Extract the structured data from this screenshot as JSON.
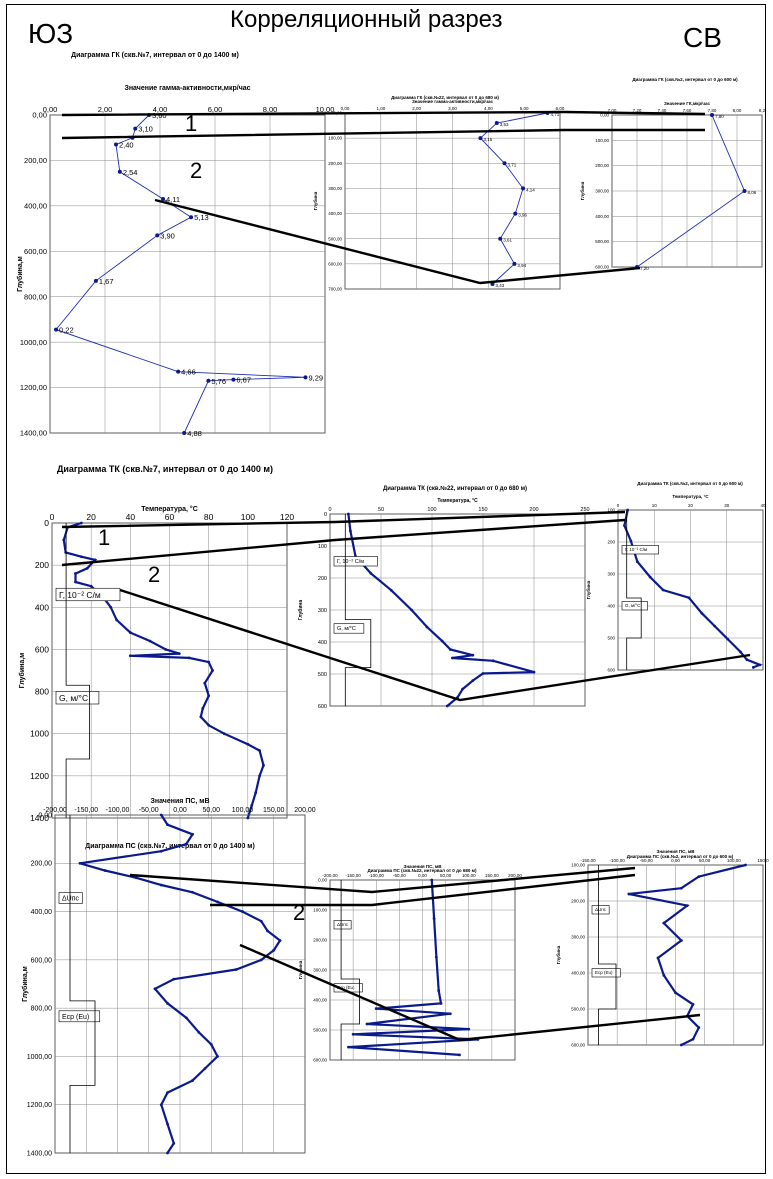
{
  "header": {
    "title": "Корреляционный разрез",
    "left_direction": "ЮЗ",
    "right_direction": "СВ"
  },
  "colors": {
    "series": "#1f2fb0",
    "series_dark": "#0a1a8c",
    "correlation": "#000000",
    "axis": "#000000"
  },
  "chart_data": [
    {
      "id": "gk7",
      "type": "line",
      "title": "Диаграмма ГК (скв.№7, интервал от 0 до 1400 м)",
      "xlabel": "Значение гамма-активности,мкр/час",
      "ylabel": "Глубина,м",
      "xlim": [
        0,
        10
      ],
      "ylim": [
        0,
        1400
      ],
      "xticks": [
        "0,00",
        "2,00",
        "4,00",
        "6,00",
        "8,00",
        "10,00"
      ],
      "yticks": [
        "0,00",
        "200,00",
        "400,00",
        "600,00",
        "800,00",
        "1000,00",
        "1200,00",
        "1400,00"
      ],
      "points": [
        {
          "x": 3.6,
          "y": 0,
          "label": "3,60"
        },
        {
          "x": 3.1,
          "y": 60,
          "label": "3,10"
        },
        {
          "x": 3.0,
          "y": 100,
          "label": ""
        },
        {
          "x": 2.4,
          "y": 130,
          "label": "2,40"
        },
        {
          "x": 2.54,
          "y": 250,
          "label": "2,54"
        },
        {
          "x": 4.11,
          "y": 370,
          "label": "4,11"
        },
        {
          "x": 5.13,
          "y": 450,
          "label": "5,13"
        },
        {
          "x": 3.9,
          "y": 530,
          "label": "3,90"
        },
        {
          "x": 1.67,
          "y": 730,
          "label": "1,67"
        },
        {
          "x": 0.22,
          "y": 945,
          "label": "0,22"
        },
        {
          "x": 4.66,
          "y": 1130,
          "label": "4,66"
        },
        {
          "x": 9.29,
          "y": 1155,
          "label": "9,29"
        },
        {
          "x": 6.67,
          "y": 1165,
          "label": "6,67"
        },
        {
          "x": 5.76,
          "y": 1170,
          "label": "5,76"
        },
        {
          "x": 4.88,
          "y": 1400,
          "label": "4,88"
        }
      ]
    },
    {
      "id": "gk22",
      "type": "line",
      "title": "Диаграмма ГК (скв.№22, интервал от 0 до 680 м)",
      "xlabel": "Значение гамма-активности,мкр/час",
      "ylabel": "Глубина",
      "xlim": [
        0,
        5
      ],
      "ylim": [
        0,
        700
      ],
      "xticks": [
        "0,00",
        "1,00",
        "2,00",
        "3,00",
        "4,00",
        "5,00",
        "6,00"
      ],
      "yticks": [
        "0,00",
        "100,00",
        "200,00",
        "300,00",
        "400,00",
        "500,00",
        "600,00",
        "700,00"
      ],
      "points": [
        {
          "x": 4.71,
          "y": 0,
          "label": "4,71"
        },
        {
          "x": 3.53,
          "y": 40,
          "label": "3,53"
        },
        {
          "x": 3.15,
          "y": 100,
          "label": "3,15"
        },
        {
          "x": 3.71,
          "y": 200,
          "label": "3,71"
        },
        {
          "x": 4.14,
          "y": 300,
          "label": "4,14"
        },
        {
          "x": 3.96,
          "y": 400,
          "label": "3,96"
        },
        {
          "x": 3.61,
          "y": 500,
          "label": "3,61"
        },
        {
          "x": 3.94,
          "y": 600,
          "label": "3,94"
        },
        {
          "x": 3.43,
          "y": 680,
          "label": "3,43"
        }
      ]
    },
    {
      "id": "gk2",
      "type": "line",
      "title": "Диаграмма ГК (скв.№2, интервал от 0 до 600 м)",
      "xlabel": "Значение ГК,мкр/час",
      "ylabel": "Глубина",
      "xlim": [
        7.0,
        8.2
      ],
      "ylim": [
        0,
        600
      ],
      "xticks": [
        "7,00",
        "7,20",
        "7,40",
        "7,60",
        "7,80",
        "8,00",
        "8,2"
      ],
      "yticks": [
        "0,00",
        "100,00",
        "200,00",
        "300,00",
        "400,00",
        "500,00",
        "600,00"
      ],
      "points": [
        {
          "x": 7.8,
          "y": 0,
          "label": "7,80"
        },
        {
          "x": 8.06,
          "y": 300,
          "label": "8,06"
        },
        {
          "x": 7.2,
          "y": 600,
          "label": "7,20"
        }
      ]
    },
    {
      "id": "tk7",
      "type": "line",
      "title": "Диаграмма ТК (скв.№7, интервал от 0 до 1400 м)",
      "xlabel": "Температура, °С",
      "ylabel": "Глубина,м",
      "xlim": [
        0,
        120
      ],
      "ylim": [
        0,
        1400
      ],
      "xticks": [
        "0",
        "20",
        "40",
        "60",
        "80",
        "100",
        "120"
      ],
      "yticks": [
        "0",
        "200",
        "400",
        "600",
        "800",
        "1000",
        "1200",
        "1400"
      ],
      "annotations": [
        "Г, 10⁻² С/м",
        "G, м/°С"
      ],
      "points": [
        {
          "x": 15,
          "y": 0
        },
        {
          "x": 8,
          "y": 20
        },
        {
          "x": 6,
          "y": 80
        },
        {
          "x": 7,
          "y": 140
        },
        {
          "x": 15,
          "y": 160
        },
        {
          "x": 22,
          "y": 175
        },
        {
          "x": 18,
          "y": 215
        },
        {
          "x": 12,
          "y": 240
        },
        {
          "x": 12,
          "y": 280
        },
        {
          "x": 20,
          "y": 300
        },
        {
          "x": 26,
          "y": 350
        },
        {
          "x": 30,
          "y": 400
        },
        {
          "x": 33,
          "y": 460
        },
        {
          "x": 40,
          "y": 520
        },
        {
          "x": 50,
          "y": 560
        },
        {
          "x": 58,
          "y": 600
        },
        {
          "x": 65,
          "y": 620
        },
        {
          "x": 40,
          "y": 630
        },
        {
          "x": 70,
          "y": 640
        },
        {
          "x": 80,
          "y": 660
        },
        {
          "x": 82,
          "y": 700
        },
        {
          "x": 78,
          "y": 760
        },
        {
          "x": 80,
          "y": 820
        },
        {
          "x": 77,
          "y": 880
        },
        {
          "x": 76,
          "y": 920
        },
        {
          "x": 80,
          "y": 960
        },
        {
          "x": 88,
          "y": 1000
        },
        {
          "x": 100,
          "y": 1050
        },
        {
          "x": 106,
          "y": 1080
        },
        {
          "x": 108,
          "y": 1150
        },
        {
          "x": 106,
          "y": 1200
        },
        {
          "x": 104,
          "y": 1280
        },
        {
          "x": 102,
          "y": 1340
        },
        {
          "x": 100,
          "y": 1400
        }
      ]
    },
    {
      "id": "tk22",
      "type": "line",
      "title": "Диаграмма ТК (скв.№22, интервал от 0 до 680 м)",
      "xlabel": "Температура, °С",
      "ylabel": "Глубина",
      "xlim": [
        0,
        250
      ],
      "ylim": [
        0,
        680
      ],
      "xticks": [
        "0",
        "50",
        "100",
        "150",
        "200",
        "250"
      ],
      "yticks": [
        "0",
        "100",
        "200",
        "300",
        "400",
        "500",
        "600"
      ],
      "annotations": [
        "Г, 10⁻² С/м",
        "G, м/°С"
      ],
      "points": [
        {
          "x": 18,
          "y": 0
        },
        {
          "x": 20,
          "y": 60
        },
        {
          "x": 25,
          "y": 150
        },
        {
          "x": 40,
          "y": 210
        },
        {
          "x": 60,
          "y": 270
        },
        {
          "x": 80,
          "y": 340
        },
        {
          "x": 95,
          "y": 400
        },
        {
          "x": 110,
          "y": 450
        },
        {
          "x": 118,
          "y": 480
        },
        {
          "x": 140,
          "y": 500
        },
        {
          "x": 120,
          "y": 510
        },
        {
          "x": 160,
          "y": 520
        },
        {
          "x": 200,
          "y": 560
        },
        {
          "x": 150,
          "y": 565
        },
        {
          "x": 140,
          "y": 590
        },
        {
          "x": 130,
          "y": 620
        },
        {
          "x": 125,
          "y": 650
        },
        {
          "x": 115,
          "y": 680
        }
      ]
    },
    {
      "id": "tk2",
      "type": "line",
      "title": "Диаграмма ТК (скв.№2, интервал от 0 до 600 м)",
      "xlabel": "Температура, °С",
      "ylabel": "Глубина",
      "xlim": [
        0,
        45
      ],
      "ylim": [
        0,
        620
      ],
      "xticks": [
        "0",
        "10",
        "20",
        "30",
        "40"
      ],
      "yticks": [
        "100",
        "200",
        "300",
        "400",
        "500",
        "600"
      ],
      "annotations": [
        "Г, 10⁻² С/м",
        "G, м/°С"
      ],
      "points": [
        {
          "x": 3,
          "y": 0
        },
        {
          "x": 2,
          "y": 60
        },
        {
          "x": 4,
          "y": 120
        },
        {
          "x": 6,
          "y": 200
        },
        {
          "x": 10,
          "y": 260
        },
        {
          "x": 14,
          "y": 310
        },
        {
          "x": 22,
          "y": 340
        },
        {
          "x": 26,
          "y": 400
        },
        {
          "x": 30,
          "y": 450
        },
        {
          "x": 34,
          "y": 500
        },
        {
          "x": 38,
          "y": 550
        },
        {
          "x": 40,
          "y": 580
        },
        {
          "x": 44,
          "y": 600
        },
        {
          "x": 42,
          "y": 610
        }
      ]
    },
    {
      "id": "ps7",
      "type": "line",
      "title": "Диаграмма ПС (скв.№7, интервал от 0 до 1400 м)",
      "xlabel": "Значения ПС, мВ",
      "ylabel": "Глубина,м",
      "xlim": [
        -200,
        200
      ],
      "ylim": [
        0,
        1400
      ],
      "xticks": [
        "-200,00",
        "-150,00",
        "-100,00",
        "-50,00",
        "0,00",
        "50,00",
        "100,00",
        "150,00",
        "200,00"
      ],
      "yticks": [
        "0,00",
        "200,00",
        "400,00",
        "600,00",
        "800,00",
        "1000,00",
        "1200,00",
        "1400,00"
      ],
      "annotations": [
        "ΔUпс",
        "Ecp (Eu)"
      ],
      "points": [
        {
          "x": -30,
          "y": 0
        },
        {
          "x": -20,
          "y": 40
        },
        {
          "x": 20,
          "y": 80
        },
        {
          "x": 10,
          "y": 120
        },
        {
          "x": -30,
          "y": 150
        },
        {
          "x": -160,
          "y": 200
        },
        {
          "x": -120,
          "y": 230
        },
        {
          "x": -70,
          "y": 260
        },
        {
          "x": -30,
          "y": 290
        },
        {
          "x": 20,
          "y": 320
        },
        {
          "x": 60,
          "y": 360
        },
        {
          "x": 100,
          "y": 400
        },
        {
          "x": 130,
          "y": 440
        },
        {
          "x": 140,
          "y": 480
        },
        {
          "x": 160,
          "y": 520
        },
        {
          "x": 150,
          "y": 560
        },
        {
          "x": 130,
          "y": 600
        },
        {
          "x": 90,
          "y": 640
        },
        {
          "x": -10,
          "y": 680
        },
        {
          "x": -40,
          "y": 720
        },
        {
          "x": -20,
          "y": 780
        },
        {
          "x": 10,
          "y": 840
        },
        {
          "x": 30,
          "y": 900
        },
        {
          "x": 50,
          "y": 950
        },
        {
          "x": 60,
          "y": 1000
        },
        {
          "x": 40,
          "y": 1050
        },
        {
          "x": 20,
          "y": 1100
        },
        {
          "x": -20,
          "y": 1150
        },
        {
          "x": -30,
          "y": 1200
        },
        {
          "x": -20,
          "y": 1280
        },
        {
          "x": -10,
          "y": 1360
        },
        {
          "x": -20,
          "y": 1400
        }
      ]
    },
    {
      "id": "ps22",
      "type": "line",
      "title": "Диаграмма ПС (скв.№22, интервал от 0 до 680 м)",
      "xlabel": "Значения ПС, мВ",
      "ylabel": "Глубина",
      "xlim": [
        -200,
        200
      ],
      "ylim": [
        0,
        700
      ],
      "xticks": [
        "-200,00",
        "-150,00",
        "-100,00",
        "-50,00",
        "0,00",
        "50,00",
        "100,00",
        "150,00",
        "200,00"
      ],
      "yticks": [
        "0,00",
        "100,00",
        "200,00",
        "300,00",
        "400,00",
        "500,00",
        "600,00"
      ],
      "annotations": [
        "ΔUпс",
        "Ecp (Eu)"
      ],
      "points": [
        {
          "x": 20,
          "y": 0
        },
        {
          "x": 25,
          "y": 150
        },
        {
          "x": 30,
          "y": 300
        },
        {
          "x": 35,
          "y": 430
        },
        {
          "x": 40,
          "y": 480
        },
        {
          "x": -100,
          "y": 500
        },
        {
          "x": 60,
          "y": 520
        },
        {
          "x": -120,
          "y": 560
        },
        {
          "x": 100,
          "y": 580
        },
        {
          "x": -150,
          "y": 600
        },
        {
          "x": 120,
          "y": 620
        },
        {
          "x": -160,
          "y": 650
        },
        {
          "x": 80,
          "y": 680
        }
      ]
    },
    {
      "id": "ps2",
      "type": "line",
      "title": "Диаграмма ПС (скв.№2, интервал от 0 до 600 м)",
      "xlabel": "Значения ПС, мВ",
      "ylabel": "Глубина",
      "xlim": [
        -150,
        150
      ],
      "ylim": [
        0,
        620
      ],
      "xticks": [
        "-150,00",
        "-100,00",
        "-50,00",
        "0,00",
        "50,00",
        "100,00",
        "150,0"
      ],
      "yticks": [
        "100,00",
        "200,00",
        "300,00",
        "400,00",
        "500,00",
        "600,00"
      ],
      "annotations": [
        "ΔUпс",
        "Ecp (Eu)"
      ],
      "points": [
        {
          "x": 120,
          "y": 0
        },
        {
          "x": 40,
          "y": 40
        },
        {
          "x": 10,
          "y": 80
        },
        {
          "x": -80,
          "y": 100
        },
        {
          "x": 20,
          "y": 140
        },
        {
          "x": -20,
          "y": 200
        },
        {
          "x": 10,
          "y": 260
        },
        {
          "x": -30,
          "y": 320
        },
        {
          "x": -20,
          "y": 380
        },
        {
          "x": 0,
          "y": 440
        },
        {
          "x": 30,
          "y": 480
        },
        {
          "x": 20,
          "y": 520
        },
        {
          "x": 40,
          "y": 560
        },
        {
          "x": 30,
          "y": 600
        },
        {
          "x": 10,
          "y": 620
        }
      ]
    }
  ],
  "zone_labels": [
    "1",
    "2"
  ]
}
